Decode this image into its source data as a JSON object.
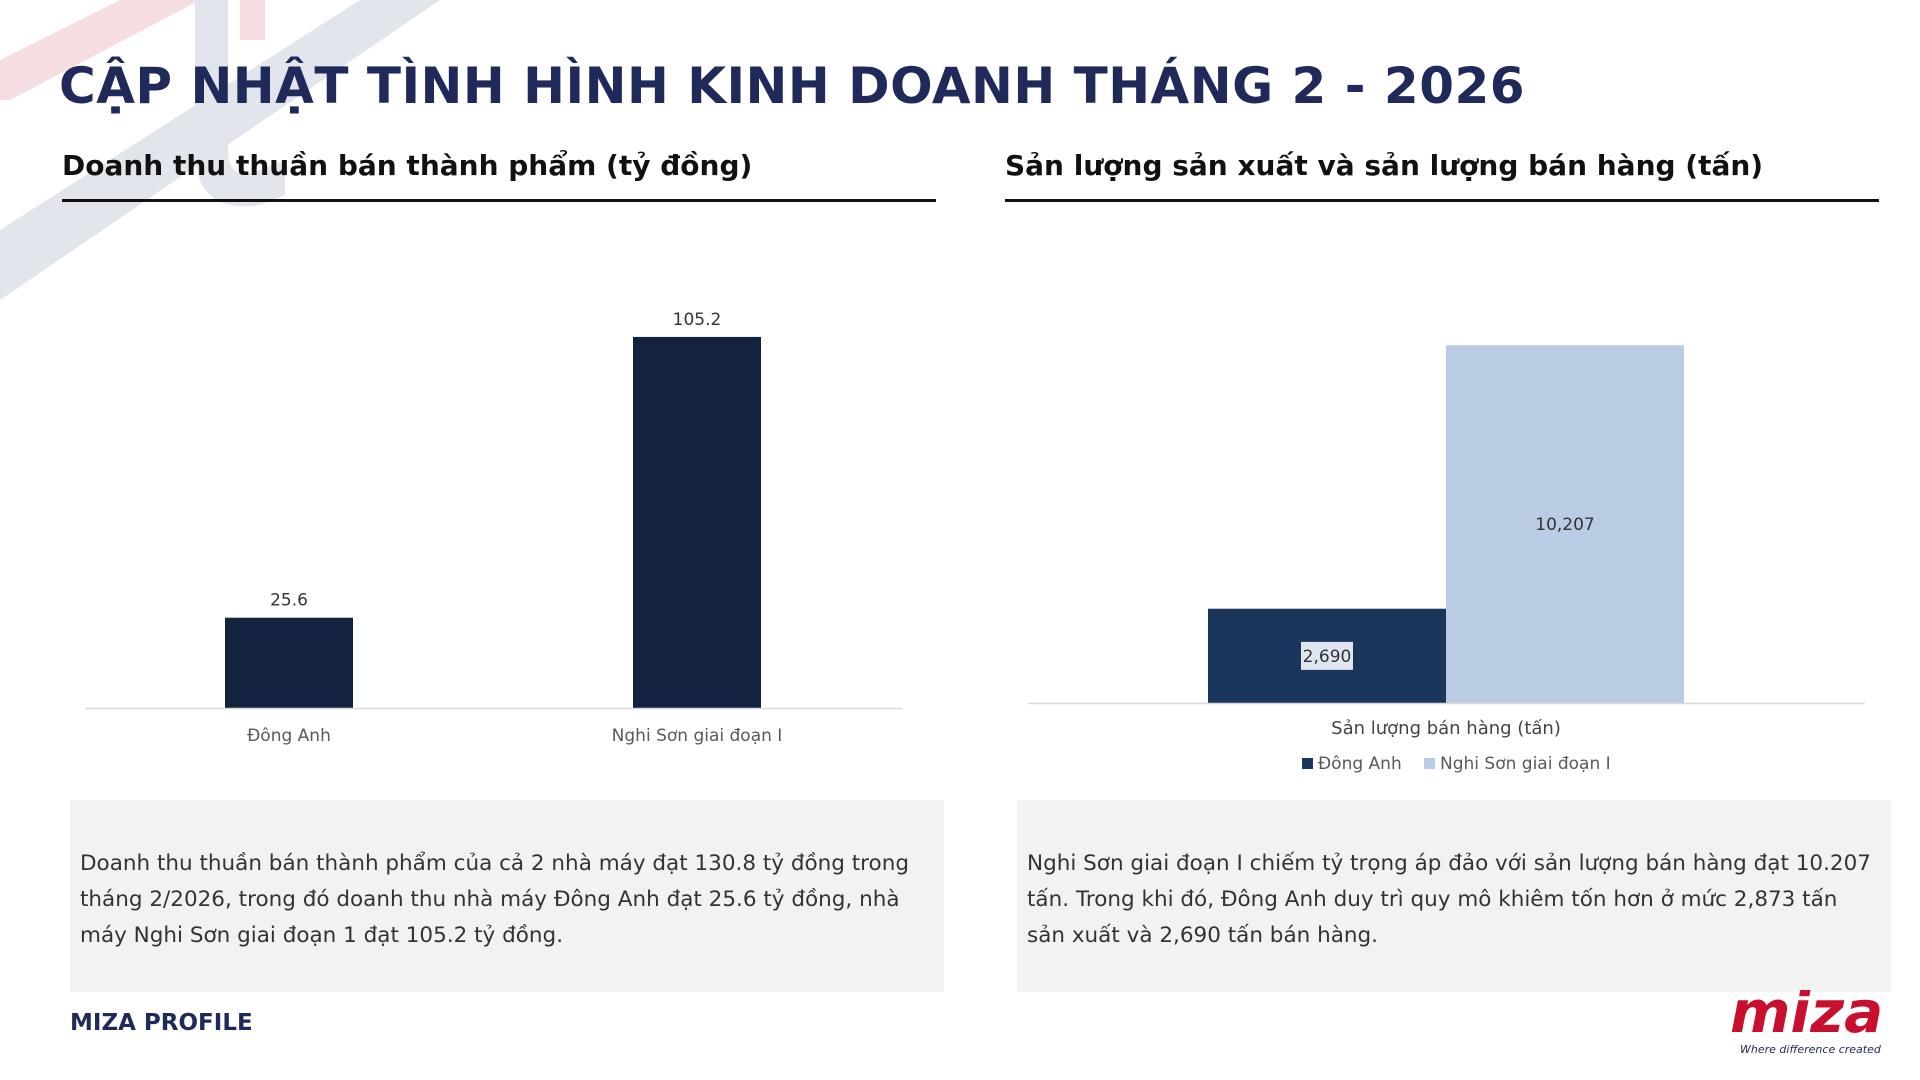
{
  "page": {
    "title": "CẬP NHẬT TÌNH HÌNH KINH DOANH THÁNG 2 - 2026"
  },
  "left": {
    "section_title": "Doanh thu thuần bán thành phẩm (tỷ đồng)",
    "note": "Doanh thu thuần bán thành phẩm của cả 2 nhà máy đạt 130.8 tỷ đồng trong tháng 2/2026, trong đó doanh thu nhà máy Đông Anh đạt 25.6 tỷ đồng, nhà máy Nghi Sơn giai đoạn 1 đạt 105.2 tỷ đồng."
  },
  "right": {
    "section_title": "Sản lượng sản xuất và sản lượng bán hàng (tấn)",
    "note": "Nghi Sơn giai đoạn I chiếm tỷ trọng áp đảo với sản lượng bán hàng đạt 10.207 tấn. Trong khi đó, Đông Anh duy trì quy mô khiêm tốn hơn ở mức 2,873 tấn sản xuất và 2,690 tấn bán hàng."
  },
  "footer": {
    "label": "MIZA PROFILE"
  },
  "logo": {
    "word": "miza",
    "tagline": "Where difference created"
  },
  "colors": {
    "navy": "#13233f",
    "dark_blue": "#1b365d",
    "light_blue": "#b9cce4",
    "brand_red": "#c8102e",
    "title_navy": "#1f2a5a"
  },
  "chart_data": [
    {
      "type": "bar",
      "title": "Doanh thu thuần bán thành phẩm (tỷ đồng)",
      "categories": [
        "Đông Anh",
        "Nghi Sơn giai đoạn I"
      ],
      "values": [
        25.6,
        105.2
      ],
      "value_labels": [
        "25.6",
        "105.2"
      ],
      "ylim": [
        0,
        110
      ],
      "grid": false,
      "legend": "none"
    },
    {
      "type": "bar",
      "title": "Sản lượng sản xuất và sản lượng bán hàng (tấn)",
      "categories": [
        "Sản lượng bán hàng (tấn)"
      ],
      "series": [
        {
          "name": "Đông Anh",
          "values": [
            2690
          ],
          "value_labels": [
            "2,690"
          ]
        },
        {
          "name": "Nghi Sơn giai đoạn I",
          "values": [
            10207
          ],
          "value_labels": [
            "10,207"
          ]
        }
      ],
      "ylim": [
        0,
        10500
      ],
      "grid": false,
      "legend": "bottom"
    }
  ]
}
